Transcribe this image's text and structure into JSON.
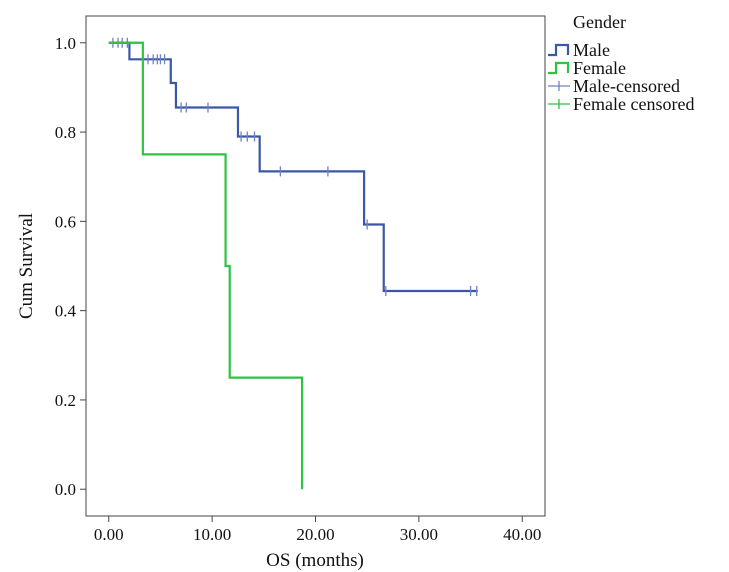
{
  "chart_data": {
    "type": "line",
    "subtype": "kaplan-meier step",
    "xlabel": "OS (months)",
    "ylabel": "Cum Survival",
    "xlim": [
      -2.2,
      42.2
    ],
    "ylim": [
      -0.06,
      1.06
    ],
    "x_ticks": [
      0,
      10,
      20,
      30,
      40
    ],
    "x_tick_labels": [
      "0.00",
      "10.00",
      "20.00",
      "30.00",
      "40.00"
    ],
    "y_ticks": [
      0,
      0.2,
      0.4,
      0.6,
      0.8,
      1.0
    ],
    "y_tick_labels": [
      "0.0",
      "0.2",
      "0.4",
      "0.6",
      "0.8",
      "1.0"
    ],
    "grid": false,
    "legend": {
      "title": "Gender",
      "placement": "right",
      "entries": [
        {
          "label": "Male",
          "kind": "step",
          "color": "#3b57a8"
        },
        {
          "label": "Female",
          "kind": "step",
          "color": "#2ec440"
        },
        {
          "label": "Male-censored",
          "kind": "censor",
          "color": "#6e83c4"
        },
        {
          "label": "Female censored",
          "kind": "censor",
          "color": "#2ec440"
        }
      ]
    },
    "series": [
      {
        "name": "Male",
        "color": "#3b57a8",
        "steps": [
          [
            0,
            1.0
          ],
          [
            2.0,
            0.963
          ],
          [
            6.0,
            0.91
          ],
          [
            6.5,
            0.855
          ],
          [
            12.5,
            0.79
          ],
          [
            14.6,
            0.712
          ],
          [
            24.7,
            0.593
          ],
          [
            26.6,
            0.444
          ],
          [
            35.7,
            0.444
          ]
        ],
        "censored": [
          [
            0.4,
            1.0
          ],
          [
            0.9,
            1.0
          ],
          [
            1.3,
            1.0
          ],
          [
            1.8,
            1.0
          ],
          [
            3.3,
            0.963
          ],
          [
            3.8,
            0.963
          ],
          [
            4.3,
            0.963
          ],
          [
            4.7,
            0.963
          ],
          [
            5.0,
            0.963
          ],
          [
            5.4,
            0.963
          ],
          [
            7.0,
            0.855
          ],
          [
            7.5,
            0.855
          ],
          [
            9.6,
            0.855
          ],
          [
            12.8,
            0.79
          ],
          [
            13.4,
            0.79
          ],
          [
            14.1,
            0.79
          ],
          [
            16.6,
            0.712
          ],
          [
            21.2,
            0.712
          ],
          [
            25.0,
            0.593
          ],
          [
            26.8,
            0.444
          ],
          [
            35.0,
            0.444
          ],
          [
            35.6,
            0.444
          ]
        ]
      },
      {
        "name": "Female",
        "color": "#2ec440",
        "steps": [
          [
            0,
            1.0
          ],
          [
            3.3,
            0.75
          ],
          [
            11.3,
            0.5
          ],
          [
            11.7,
            0.25
          ],
          [
            18.7,
            0.0
          ]
        ],
        "censored": []
      }
    ]
  }
}
